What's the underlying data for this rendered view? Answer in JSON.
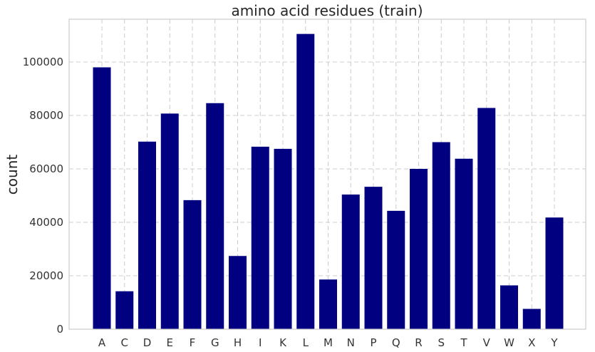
{
  "chart_data": {
    "type": "bar",
    "title": "amino acid residues (train)",
    "xlabel": "",
    "ylabel": "count",
    "categories": [
      "A",
      "C",
      "D",
      "E",
      "F",
      "G",
      "H",
      "I",
      "K",
      "L",
      "M",
      "N",
      "P",
      "Q",
      "R",
      "S",
      "T",
      "V",
      "W",
      "X",
      "Y"
    ],
    "values": [
      98000,
      14200,
      70200,
      80700,
      48300,
      84600,
      27400,
      68300,
      67500,
      110500,
      18600,
      50400,
      53300,
      44300,
      60000,
      70000,
      63800,
      82800,
      16400,
      7600,
      41800
    ],
    "ylim": [
      0,
      116000
    ],
    "yticks": [
      0,
      20000,
      40000,
      60000,
      80000,
      100000
    ],
    "grid": true,
    "bar_color": "#000080"
  }
}
